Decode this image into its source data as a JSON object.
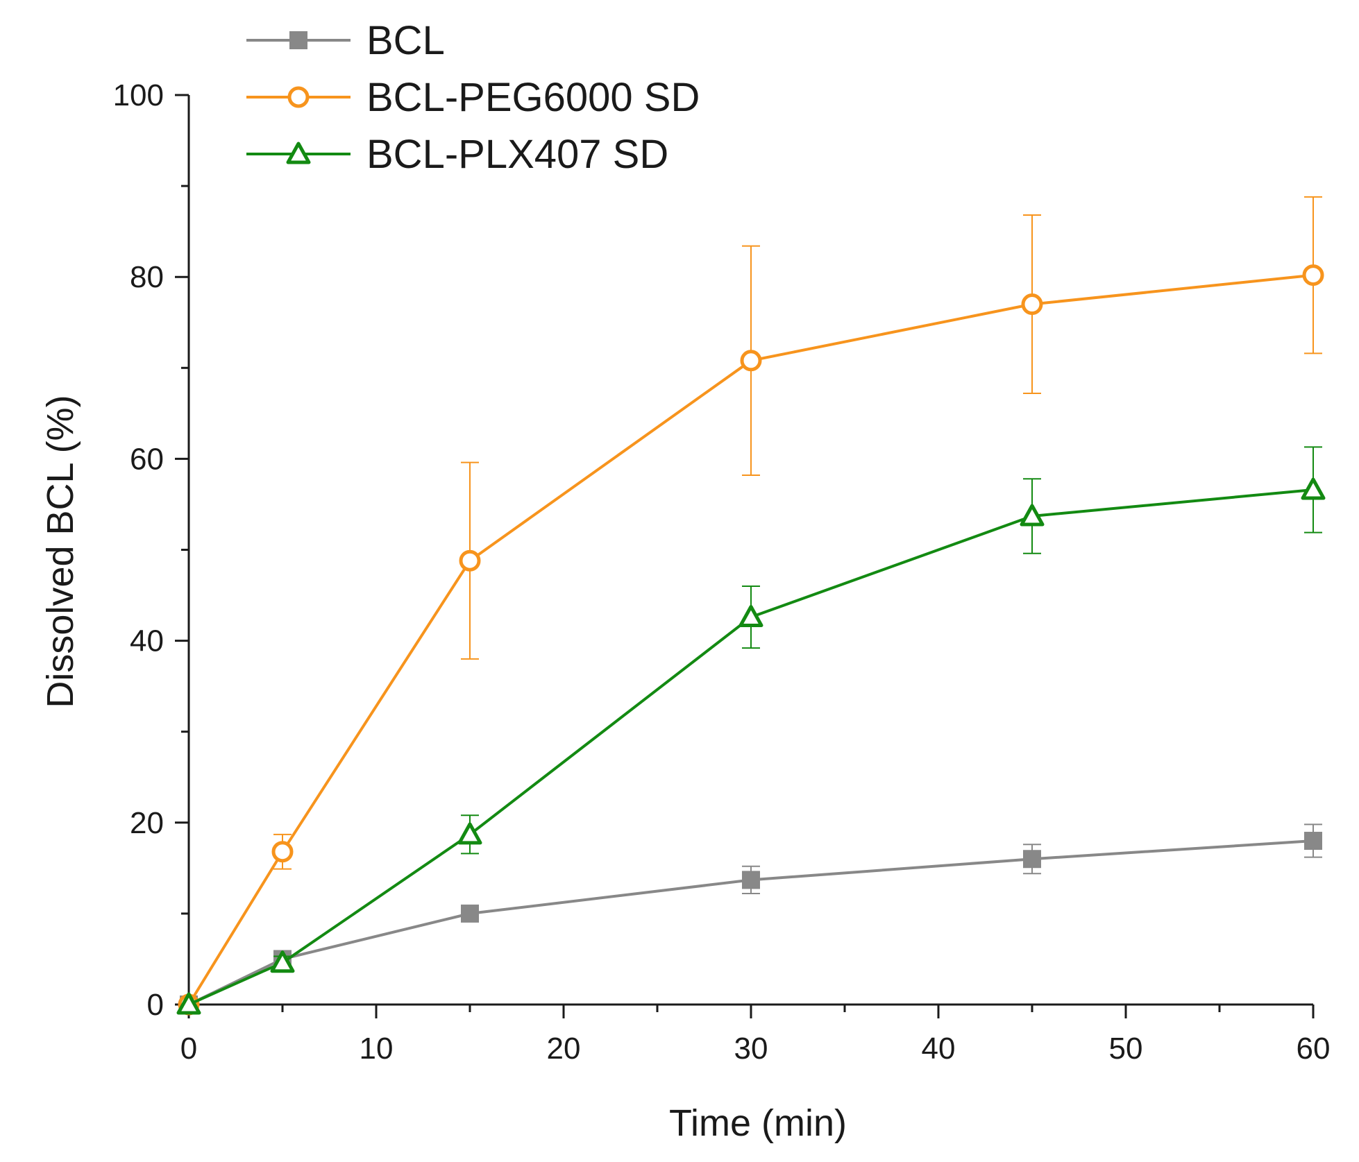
{
  "chart_data": {
    "type": "line",
    "xlabel": "Time (min)",
    "ylabel": "Dissolved BCL (%)",
    "xlim": [
      0,
      60
    ],
    "ylim": [
      0,
      100
    ],
    "x_ticks": [
      0,
      10,
      20,
      30,
      40,
      50,
      60
    ],
    "x_tick_labels": [
      "0",
      "10",
      "20",
      "30",
      "40",
      "50",
      "60"
    ],
    "y_ticks": [
      0,
      20,
      40,
      60,
      80,
      100
    ],
    "y_tick_labels": [
      "0",
      "20",
      "40",
      "60",
      "80",
      "100"
    ],
    "grid": false,
    "legend_position": "top-left",
    "x": [
      0,
      5,
      15,
      30,
      45,
      60
    ],
    "series": [
      {
        "name": "BCL",
        "color": "#888888",
        "marker": "square",
        "values": [
          0,
          5,
          10,
          13.7,
          16,
          18
        ],
        "errors": [
          0,
          0.8,
          0.8,
          1.5,
          1.6,
          1.8
        ]
      },
      {
        "name": "BCL-PEG6000 SD",
        "color": "#f7941d",
        "marker": "open-circle",
        "values": [
          0,
          16.8,
          48.8,
          70.8,
          77,
          80.2
        ],
        "errors": [
          0,
          1.9,
          10.8,
          12.6,
          9.8,
          8.6
        ]
      },
      {
        "name": "BCL-PLX407 SD",
        "color": "#138a12",
        "marker": "open-triangle",
        "values": [
          0,
          4.6,
          18.7,
          42.6,
          53.7,
          56.6
        ],
        "errors": [
          0,
          0.7,
          2.1,
          3.4,
          4.1,
          4.7
        ]
      }
    ]
  }
}
